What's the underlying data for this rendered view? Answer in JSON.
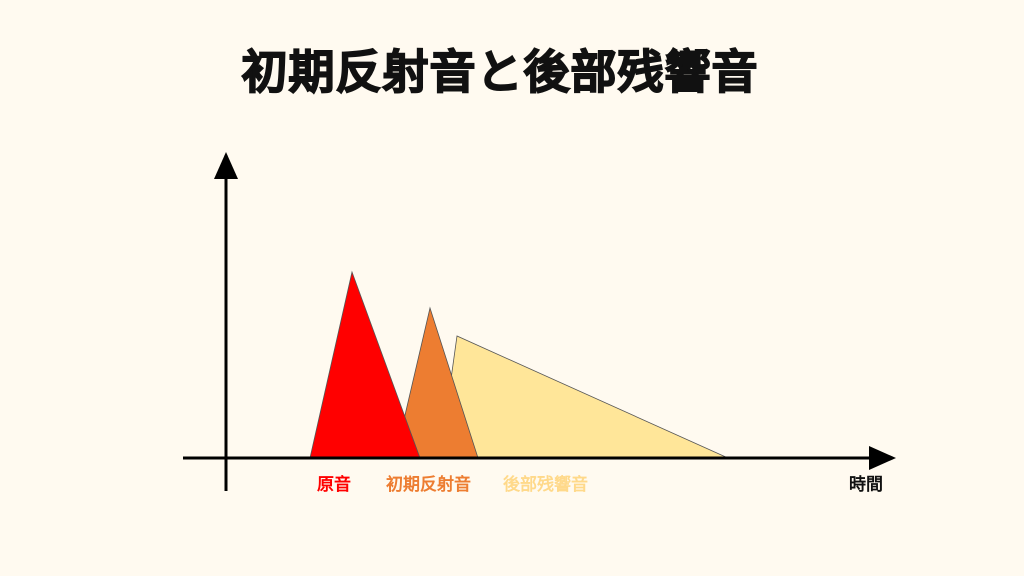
{
  "title": "初期反射音と後部残響音",
  "labels": {
    "direct": "原音",
    "early": "初期反射音",
    "late": "後部残響音",
    "time_axis": "時間"
  },
  "colors": {
    "background": "#fffaf0",
    "direct": "#ff0000",
    "early": "#ed7d31",
    "late": "#ffe699",
    "late_label": "#ffd98a"
  }
}
